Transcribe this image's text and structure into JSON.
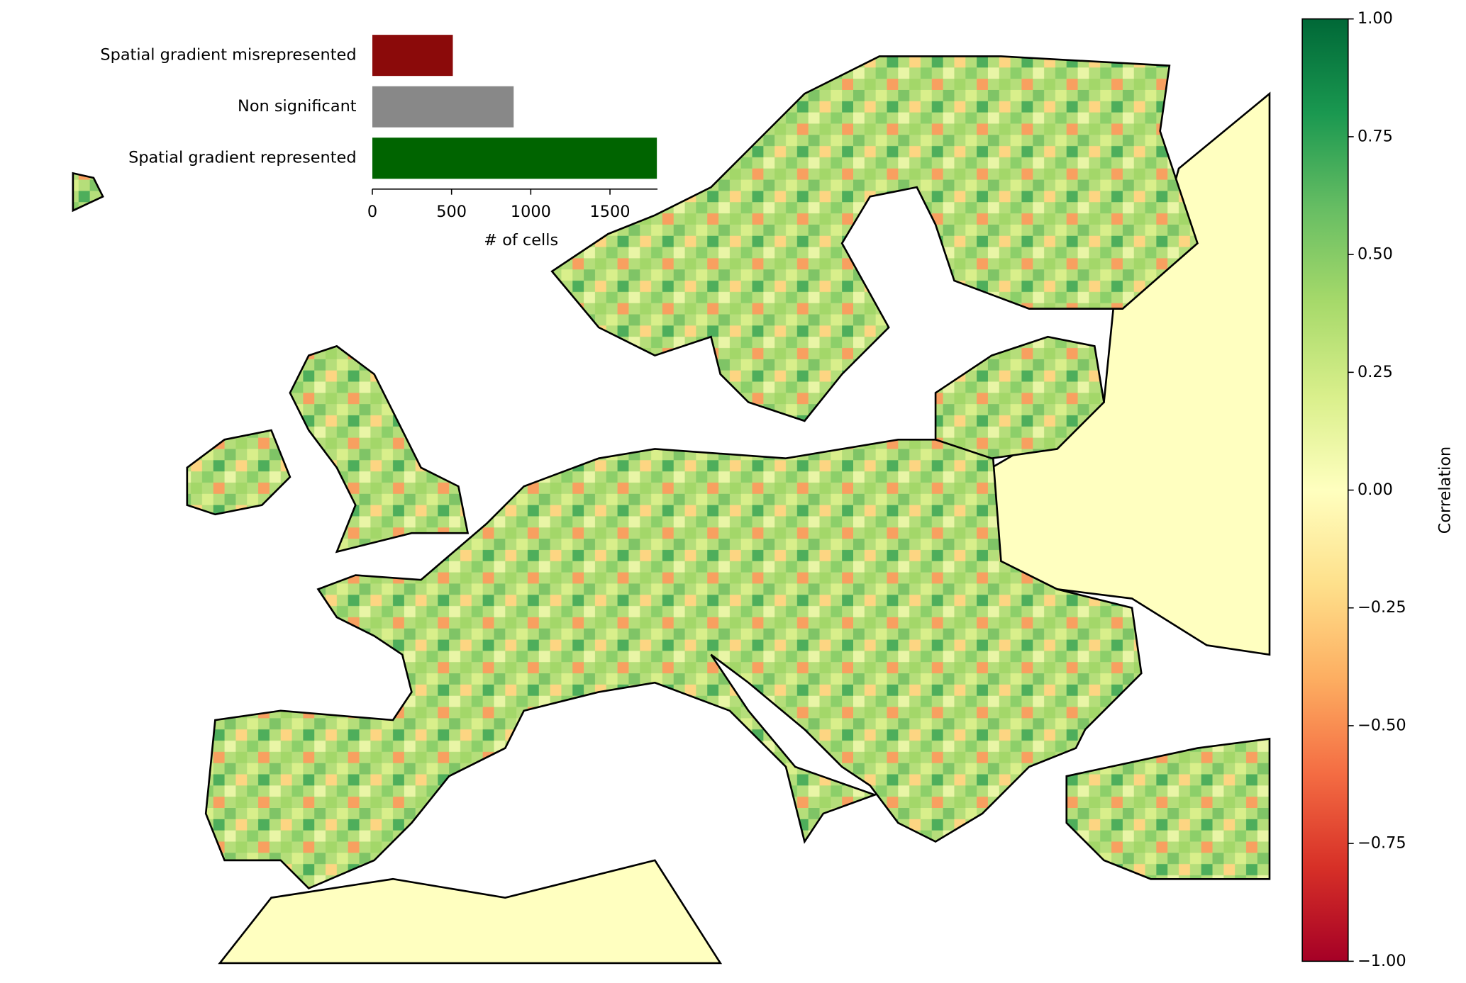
{
  "chart_data": [
    {
      "type": "bar",
      "orientation": "horizontal",
      "categories": [
        "Spatial gradient misrepresented",
        "Non significant",
        "Spatial gradient represented"
      ],
      "values": [
        508,
        892,
        1796
      ],
      "colors": [
        "#8b0a0a",
        "#888888",
        "#006400"
      ],
      "xlabel": "# of cells",
      "xlim": [
        0,
        1800
      ],
      "xticks": [
        0,
        500,
        1000,
        1500
      ]
    },
    {
      "type": "colorbar",
      "label": "Correlation",
      "lim": [
        -1,
        1
      ],
      "ticks": [
        {
          "value": 1,
          "label": "1.00"
        },
        0.75,
        {
          "value": 0.5,
          "label": "0.50"
        },
        0.25,
        {
          "value": 0,
          "label": "0.00"
        },
        {
          "value": -0.25,
          "label": "−0.25"
        },
        {
          "value": -0.5,
          "label": "−0.50"
        },
        {
          "value": -0.75,
          "label": "−0.75"
        },
        {
          "value": -1,
          "label": "−1.00"
        }
      ],
      "colors": [
        "#a50026",
        "#d73027",
        "#f46d43",
        "#fdae61",
        "#fee08b",
        "#ffffbf",
        "#d9ef8b",
        "#a6d96a",
        "#66bd63",
        "#1a9850",
        "#006837"
      ]
    }
  ]
}
